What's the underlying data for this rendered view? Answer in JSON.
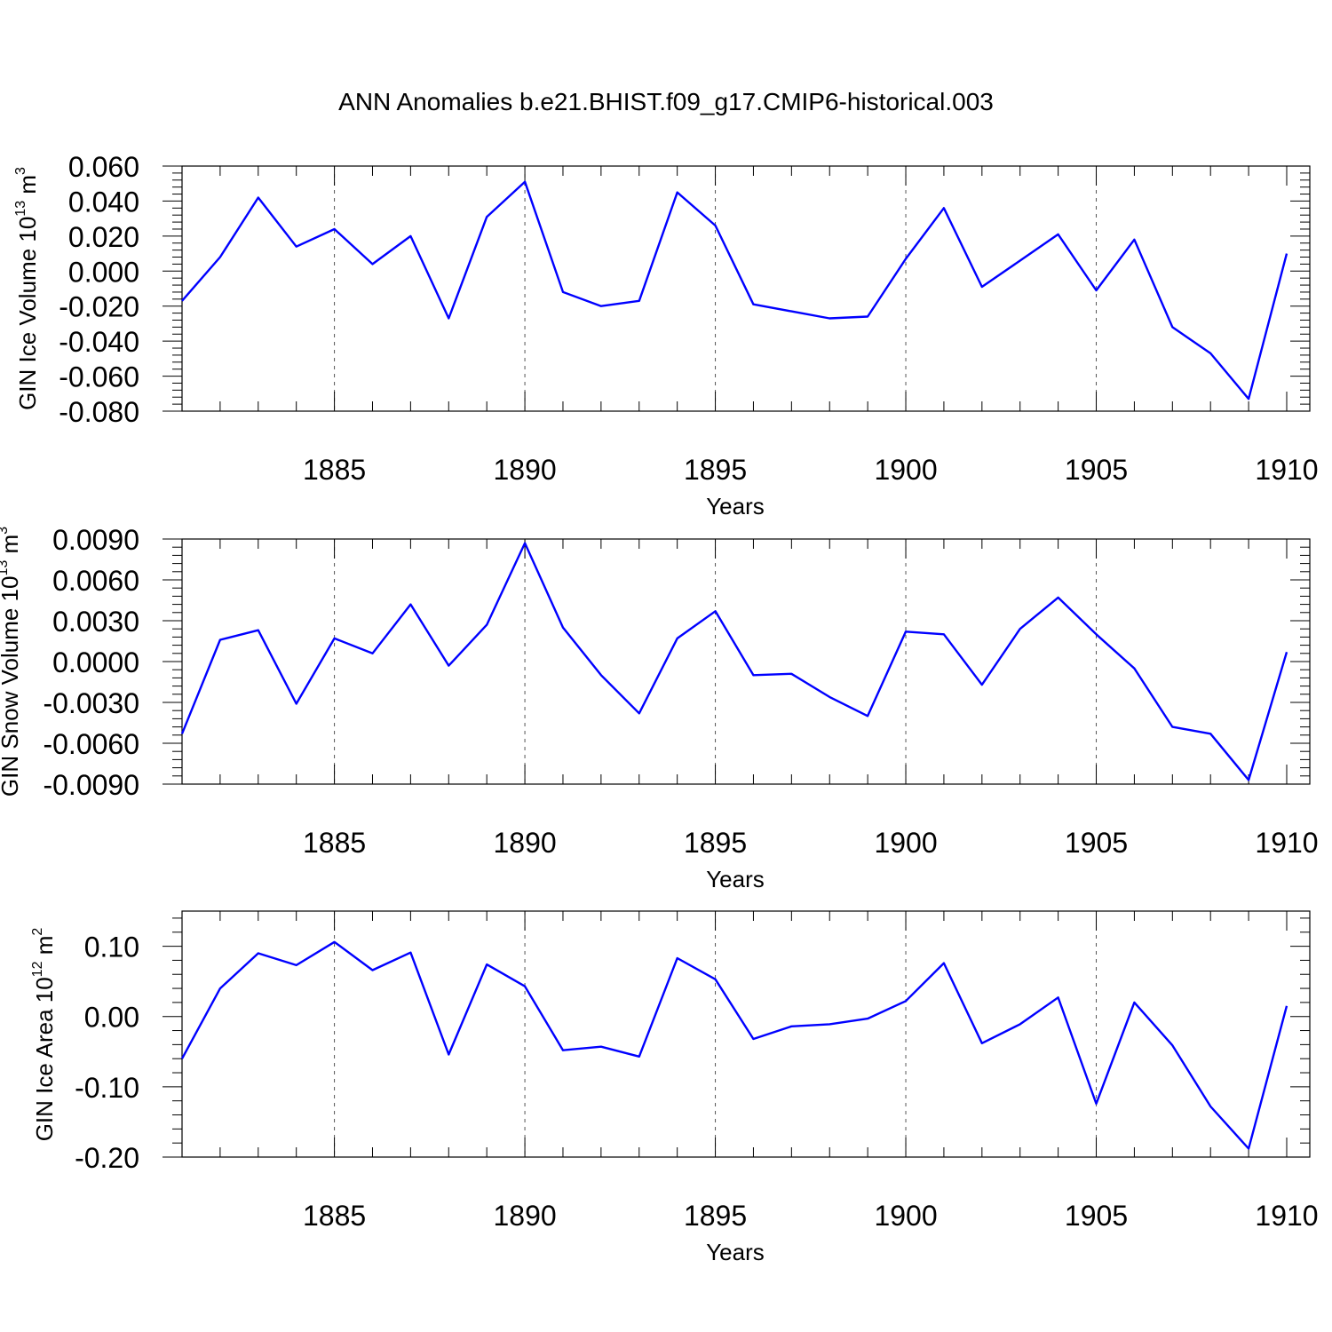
{
  "figure_title": "ANN Anomalies b.e21.BHIST.f09_g17.CMIP6-historical.003",
  "chart_data": [
    {
      "type": "line",
      "title": "",
      "xlabel": "Years",
      "ylabel": "GIN Ice Volume 10",
      "ylabel_exp": "13",
      "ylabel_unit": "m",
      "ylabel_unit_exp": "3",
      "x": [
        1881,
        1882,
        1883,
        1884,
        1885,
        1886,
        1887,
        1888,
        1889,
        1890,
        1891,
        1892,
        1893,
        1894,
        1895,
        1896,
        1897,
        1898,
        1899,
        1900,
        1901,
        1902,
        1903,
        1904,
        1905,
        1906,
        1907,
        1908,
        1909,
        1910
      ],
      "xlim": [
        1881,
        1910
      ],
      "xticks": [
        "1885",
        "1890",
        "1895",
        "1900",
        "1905",
        "1910"
      ],
      "ylim": [
        -0.08,
        0.06
      ],
      "yticks": [
        "0.060",
        "0.040",
        "0.020",
        "0.000",
        "-0.020",
        "-0.040",
        "-0.060",
        "-0.080"
      ],
      "series": [
        {
          "color": "#0000ff",
          "values": [
            -0.017,
            0.008,
            0.042,
            0.014,
            0.024,
            0.004,
            0.02,
            -0.027,
            0.031,
            0.051,
            -0.012,
            -0.02,
            -0.017,
            0.045,
            0.026,
            -0.019,
            -0.023,
            -0.027,
            -0.026,
            0.007,
            0.036,
            -0.009,
            0.006,
            0.021,
            -0.011,
            0.018,
            -0.032,
            -0.047,
            -0.073,
            0.01
          ]
        }
      ],
      "grid": "dashed vertical at major x ticks"
    },
    {
      "type": "line",
      "title": "",
      "xlabel": "Years",
      "ylabel": "GIN Snow Volume 10",
      "ylabel_exp": "13",
      "ylabel_unit": "m",
      "ylabel_unit_exp": "3",
      "x": [
        1881,
        1882,
        1883,
        1884,
        1885,
        1886,
        1887,
        1888,
        1889,
        1890,
        1891,
        1892,
        1893,
        1894,
        1895,
        1896,
        1897,
        1898,
        1899,
        1900,
        1901,
        1902,
        1903,
        1904,
        1905,
        1906,
        1907,
        1908,
        1909,
        1910
      ],
      "xlim": [
        1881,
        1910
      ],
      "xticks": [
        "1885",
        "1890",
        "1895",
        "1900",
        "1905",
        "1910"
      ],
      "ylim": [
        -0.009,
        0.009
      ],
      "yticks": [
        "0.0090",
        "0.0060",
        "0.0030",
        "0.0000",
        "-0.0030",
        "-0.0060",
        "-0.0090"
      ],
      "series": [
        {
          "color": "#0000ff",
          "values": [
            -0.0053,
            0.0016,
            0.0023,
            -0.0031,
            0.0017,
            0.0006,
            0.0042,
            -0.0003,
            0.0027,
            0.0087,
            0.0025,
            -0.001,
            -0.0038,
            0.0017,
            0.0037,
            -0.001,
            -0.0009,
            -0.0026,
            -0.004,
            0.0022,
            0.002,
            -0.0017,
            0.0024,
            0.0047,
            0.002,
            -0.0005,
            -0.0048,
            -0.0053,
            -0.0087,
            0.0007
          ]
        }
      ],
      "grid": "dashed vertical at major x ticks"
    },
    {
      "type": "line",
      "title": "",
      "xlabel": "Years",
      "ylabel": "GIN Ice Area 10",
      "ylabel_exp": "12",
      "ylabel_unit": "m",
      "ylabel_unit_exp": "2",
      "x": [
        1881,
        1882,
        1883,
        1884,
        1885,
        1886,
        1887,
        1888,
        1889,
        1890,
        1891,
        1892,
        1893,
        1894,
        1895,
        1896,
        1897,
        1898,
        1899,
        1900,
        1901,
        1902,
        1903,
        1904,
        1905,
        1906,
        1907,
        1908,
        1909,
        1910
      ],
      "xlim": [
        1881,
        1910
      ],
      "xticks": [
        "1885",
        "1890",
        "1895",
        "1900",
        "1905",
        "1910"
      ],
      "ylim": [
        -0.2,
        0.15
      ],
      "yticks": [
        "0.10",
        "0.00",
        "-0.10",
        "-0.20"
      ],
      "series": [
        {
          "color": "#0000ff",
          "values": [
            -0.06,
            0.04,
            0.09,
            0.073,
            0.106,
            0.066,
            0.091,
            -0.054,
            0.074,
            0.043,
            -0.048,
            -0.043,
            -0.057,
            0.083,
            0.053,
            -0.032,
            -0.014,
            -0.011,
            -0.003,
            0.022,
            0.076,
            -0.038,
            -0.011,
            0.027,
            -0.124,
            0.02,
            -0.041,
            -0.128,
            -0.188,
            0.015
          ]
        }
      ],
      "grid": "dashed vertical at major x ticks"
    }
  ]
}
